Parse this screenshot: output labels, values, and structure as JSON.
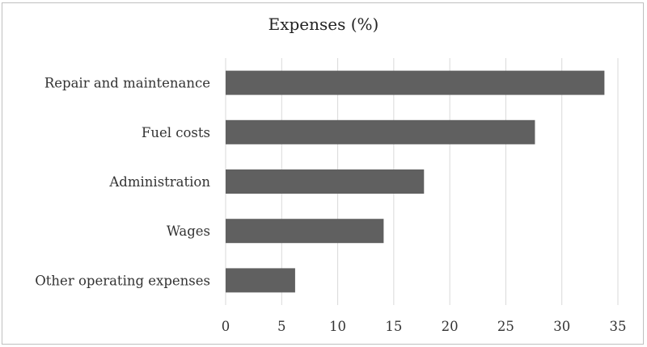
{
  "chart_data": {
    "type": "bar",
    "orientation": "horizontal",
    "title": "Expenses (%)",
    "categories": [
      "Repair and maintenance",
      "Fuel costs",
      "Administration",
      "Wages",
      "Other operating expenses"
    ],
    "values": [
      33.8,
      27.6,
      17.7,
      14.1,
      6.2
    ],
    "xlim": [
      0,
      35
    ],
    "xticks": [
      0,
      5,
      10,
      15,
      20,
      25,
      30,
      35
    ],
    "grid": "vertical",
    "legend": "none",
    "bar_color": "#606060",
    "grid_color": "#d9d9d9"
  }
}
